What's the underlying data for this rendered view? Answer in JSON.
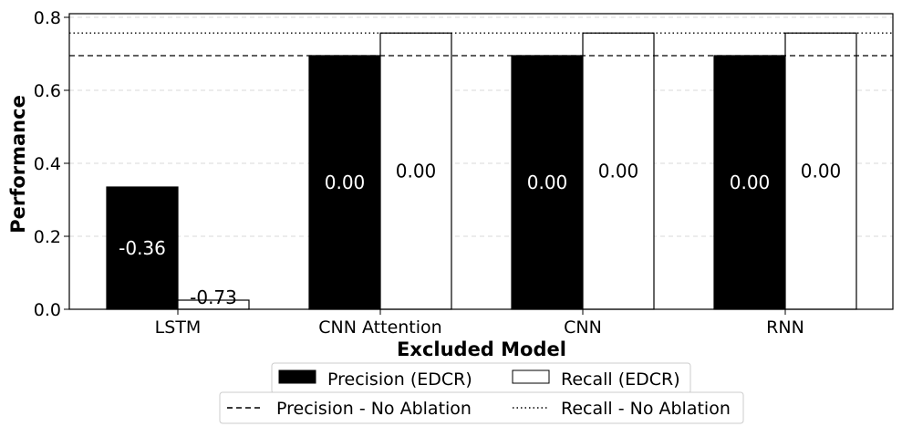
{
  "chart_data": {
    "type": "bar",
    "xlabel": "Excluded Model",
    "ylabel": "Performance",
    "ylim": [
      0,
      0.81
    ],
    "yticks": [
      "0.0",
      "0.2",
      "0.4",
      "0.6",
      "0.8"
    ],
    "grid": "horizontal dashed",
    "categories": [
      "LSTM",
      "CNN Attention",
      "CNN",
      "RNN"
    ],
    "series": [
      {
        "name": "Precision (EDCR)",
        "values": [
          0.335,
          0.695,
          0.695,
          0.695
        ],
        "labels": [
          "-0.36",
          "0.00",
          "0.00",
          "0.00"
        ],
        "fill": "#000000",
        "label_color": "#ffffff"
      },
      {
        "name": "Recall (EDCR)",
        "values": [
          0.025,
          0.757,
          0.757,
          0.757
        ],
        "labels": [
          "-0.73",
          "0.00",
          "0.00",
          "0.00"
        ],
        "fill": "#ffffff",
        "label_color": "#000000"
      }
    ],
    "reference_lines": [
      {
        "name": "Precision - No Ablation",
        "value": 0.695,
        "style": "dashed"
      },
      {
        "name": "Recall - No Ablation",
        "value": 0.757,
        "style": "dotted"
      }
    ],
    "legend_placement": "bottom-center"
  }
}
